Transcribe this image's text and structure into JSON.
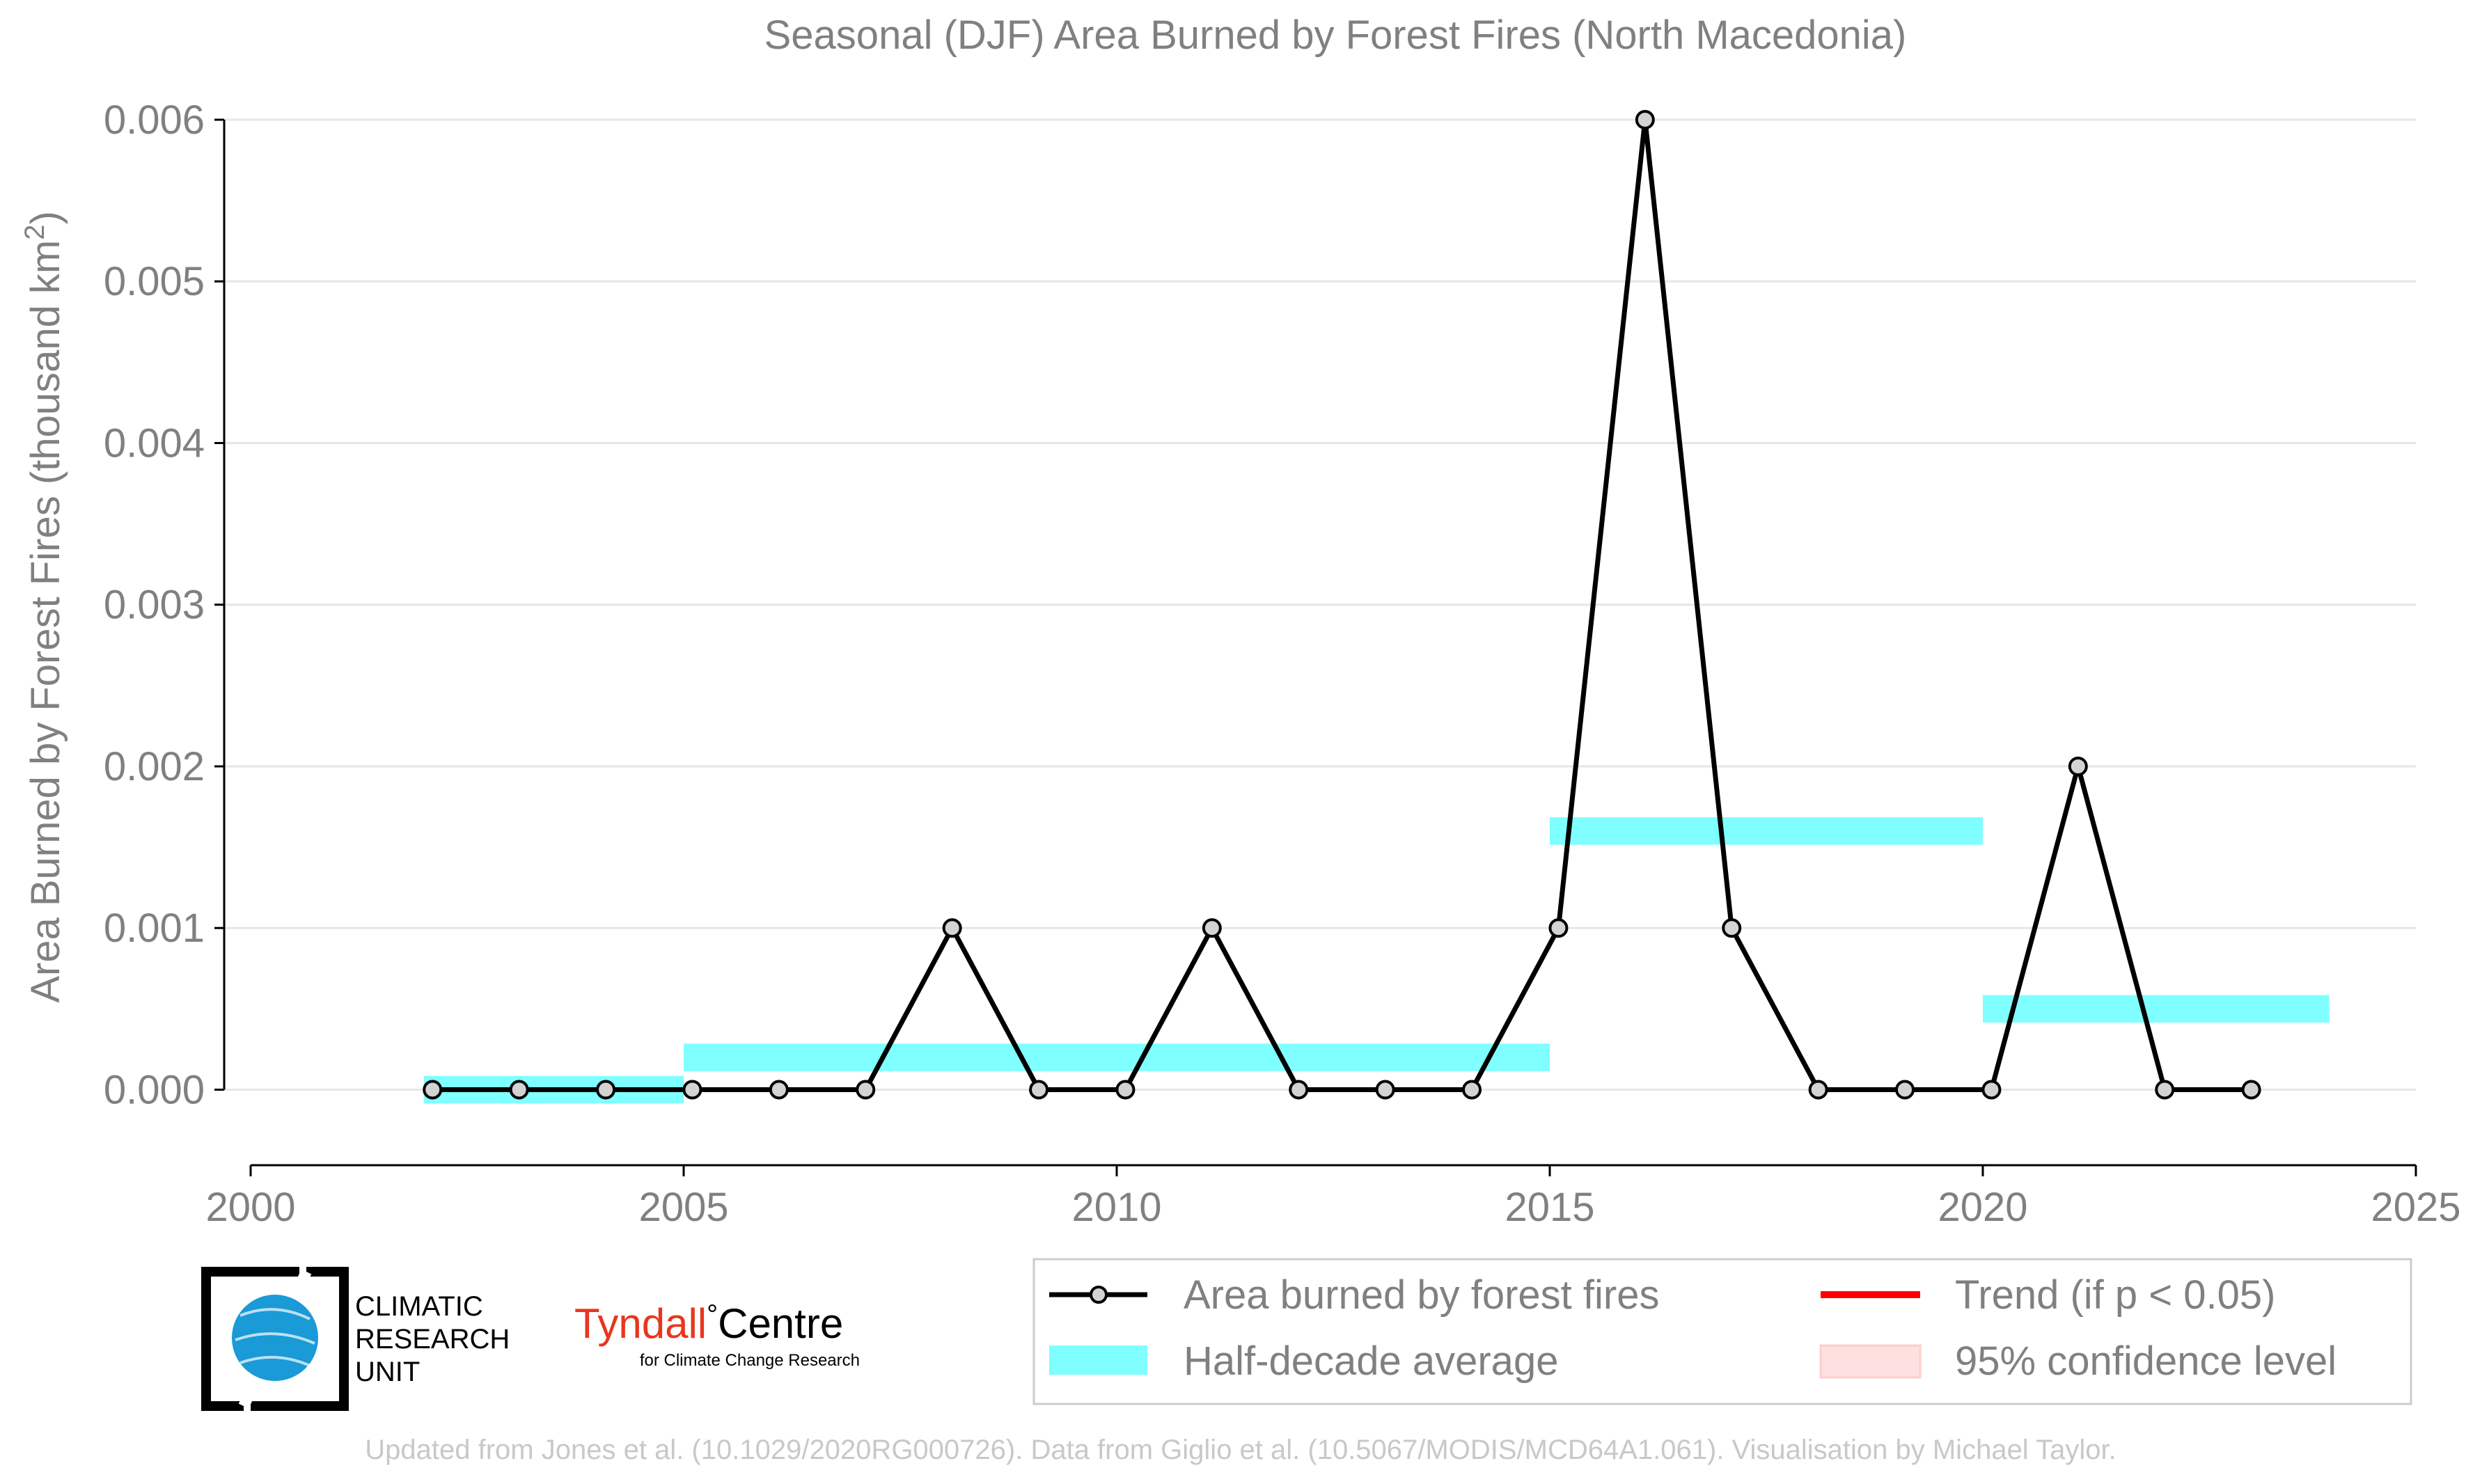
{
  "chart_data": {
    "type": "line",
    "title": "Seasonal (DJF) Area Burned by Forest Fires (North Macedonia)",
    "ylabel_main": "Area Burned by Forest Fires (thousand km",
    "ylabel_sup": "2",
    "ylabel_close": ")",
    "xlim": [
      2000,
      2025
    ],
    "ylim": [
      -0.00045,
      0.006
    ],
    "x_ticks": [
      2000,
      2005,
      2010,
      2015,
      2020,
      2025
    ],
    "y_ticks": [
      0.0,
      0.001,
      0.002,
      0.003,
      0.004,
      0.005,
      0.006
    ],
    "x_tick_labels": [
      "2000",
      "2005",
      "2010",
      "2015",
      "2020",
      "2025"
    ],
    "y_tick_labels": [
      "0.000",
      "0.001",
      "0.002",
      "0.003",
      "0.004",
      "0.005",
      "0.006"
    ],
    "grid": "horizontal",
    "series": [
      {
        "name": "Area burned by forest fires",
        "color": "#000000",
        "marker_fill": "#d3d3d3",
        "x": [
          2002.1,
          2003.1,
          2004.1,
          2005.1,
          2006.1,
          2007.1,
          2008.1,
          2009.1,
          2010.1,
          2011.1,
          2012.1,
          2013.1,
          2014.1,
          2015.1,
          2016.1,
          2017.1,
          2018.1,
          2019.1,
          2020.1,
          2021.1,
          2022.1,
          2023.1
        ],
        "y": [
          0.0,
          0.0,
          0.0,
          0.0,
          0.0,
          0.0,
          0.001,
          0.0,
          0.0,
          0.001,
          0.0,
          0.0,
          0.0,
          0.001,
          0.006,
          0.001,
          0.0,
          0.0,
          0.0,
          0.002,
          0.0,
          0.0
        ]
      }
    ],
    "half_decade_averages": {
      "name": "Half-decade average",
      "color": "#00ffff",
      "segments": [
        {
          "x_start": 2002,
          "x_end": 2005,
          "y": 0.0
        },
        {
          "x_start": 2005,
          "x_end": 2015,
          "y": 0.0002
        },
        {
          "x_start": 2015,
          "x_end": 2020,
          "y": 0.0016
        },
        {
          "x_start": 2020,
          "x_end": 2024,
          "y": 0.0005
        }
      ]
    },
    "legend": {
      "placement": "bottom-right",
      "entries": [
        {
          "label": "Area burned by forest fires",
          "kind": "line-marker",
          "color": "#000000"
        },
        {
          "label": "Trend (if p < 0.05)",
          "kind": "line",
          "color": "#ff0000"
        },
        {
          "label": "Half-decade average",
          "kind": "band",
          "color": "#00ffff"
        },
        {
          "label": "95% confidence level",
          "kind": "patch",
          "color": "#ffcccc"
        }
      ]
    }
  },
  "logos": {
    "cru_line1": "CLIMATIC",
    "cru_line2": "RESEARCH",
    "cru_line3": "UNIT",
    "tyndall_main": "Tyndall",
    "tyndall_degree": "°",
    "tyndall_centre": "Centre",
    "tyndall_sub": "for Climate Change Research",
    "cru_globe_color": "#1a9ad6",
    "tyndall_color": "#e8361e"
  },
  "footer": {
    "credit": "Updated from Jones et al. (10.1029/2020RG000726). Data from Giglio et al. (10.5067/MODIS/MCD64A1.061). Visualisation by Michael Taylor."
  }
}
